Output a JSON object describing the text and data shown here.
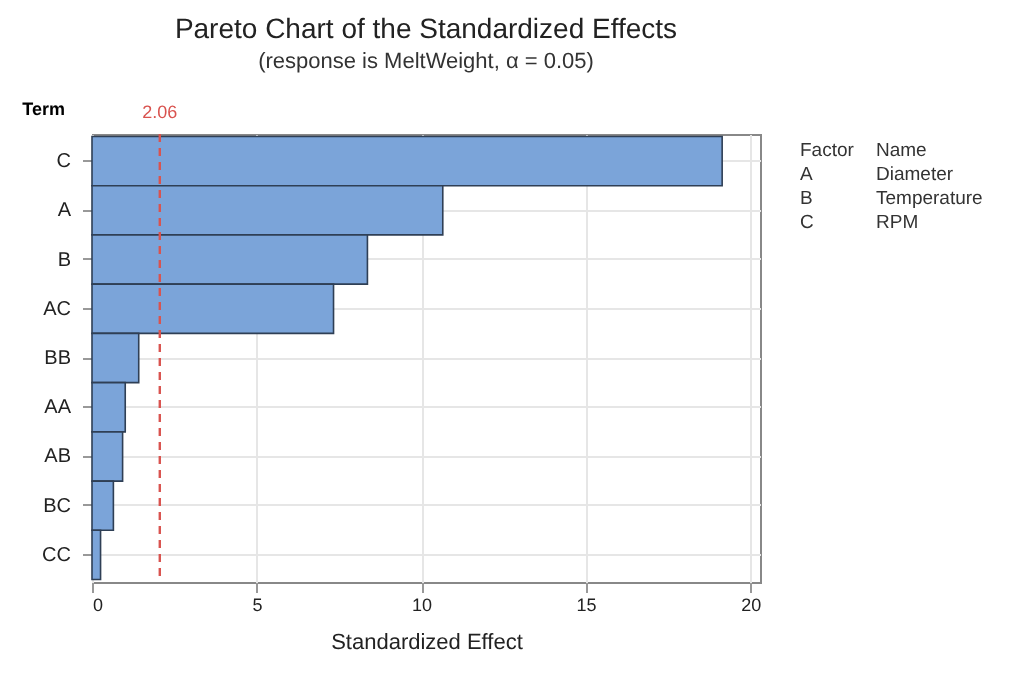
{
  "chart_data": {
    "type": "bar",
    "orientation": "horizontal",
    "title": "Pareto Chart of the Standardized Effects",
    "subtitle": "(response is MeltWeight, α = 0.05)",
    "xlabel": "Standardized Effect",
    "ylabel": "Term",
    "categories": [
      "C",
      "A",
      "B",
      "AC",
      "BB",
      "AA",
      "AB",
      "BC",
      "CC"
    ],
    "values": [
      19.15,
      10.66,
      8.37,
      7.34,
      1.42,
      1.01,
      0.93,
      0.65,
      0.26
    ],
    "color": "#7ba4d9",
    "xlim": [
      0,
      20.3
    ],
    "xticks": [
      0,
      5,
      10,
      15,
      20
    ],
    "grid": true,
    "ref_lines": [
      {
        "axis": "x",
        "value": 2.06,
        "label": "2.06",
        "color": "#d9534f",
        "line_style": "dashed"
      }
    ],
    "annotations": [
      "Factor",
      "Name",
      "A",
      "Diameter",
      "B",
      "Temperature",
      "C",
      "RPM"
    ]
  }
}
